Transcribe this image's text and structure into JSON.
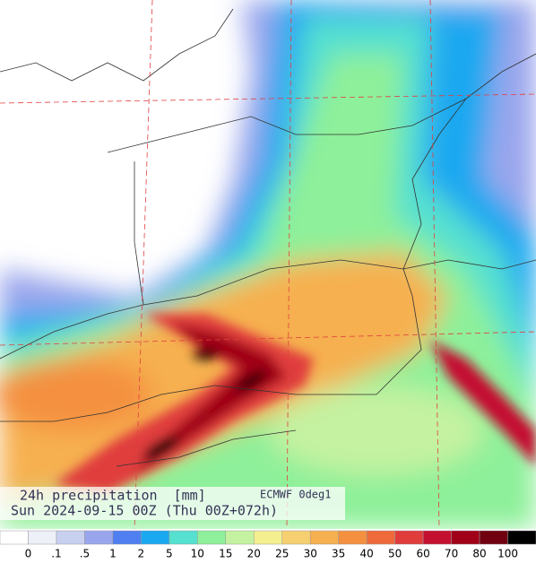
{
  "title": {
    "line1": "24h precipitation  [mm]",
    "model": "ECMWF 0deg1",
    "line2": "Sun 2024-09-15 00Z (Thu 00Z+072h)"
  },
  "legend": {
    "labels": [
      "0",
      ".1",
      ".5",
      "1",
      "2",
      "5",
      "10",
      "15",
      "20",
      "25",
      "30",
      "35",
      "40",
      "50",
      "60",
      "70",
      "80",
      "100"
    ],
    "colors": [
      "#ffffff",
      "#eef0f8",
      "#c8d0f0",
      "#9aa6ec",
      "#4f7ff0",
      "#1aa8f0",
      "#55e0d0",
      "#8ef09a",
      "#c4f2a0",
      "#f4f090",
      "#f6d070",
      "#f6b050",
      "#f49040",
      "#ee6a3a",
      "#e03c3c",
      "#c41030",
      "#a00018",
      "#700010",
      "#000000"
    ]
  }
}
